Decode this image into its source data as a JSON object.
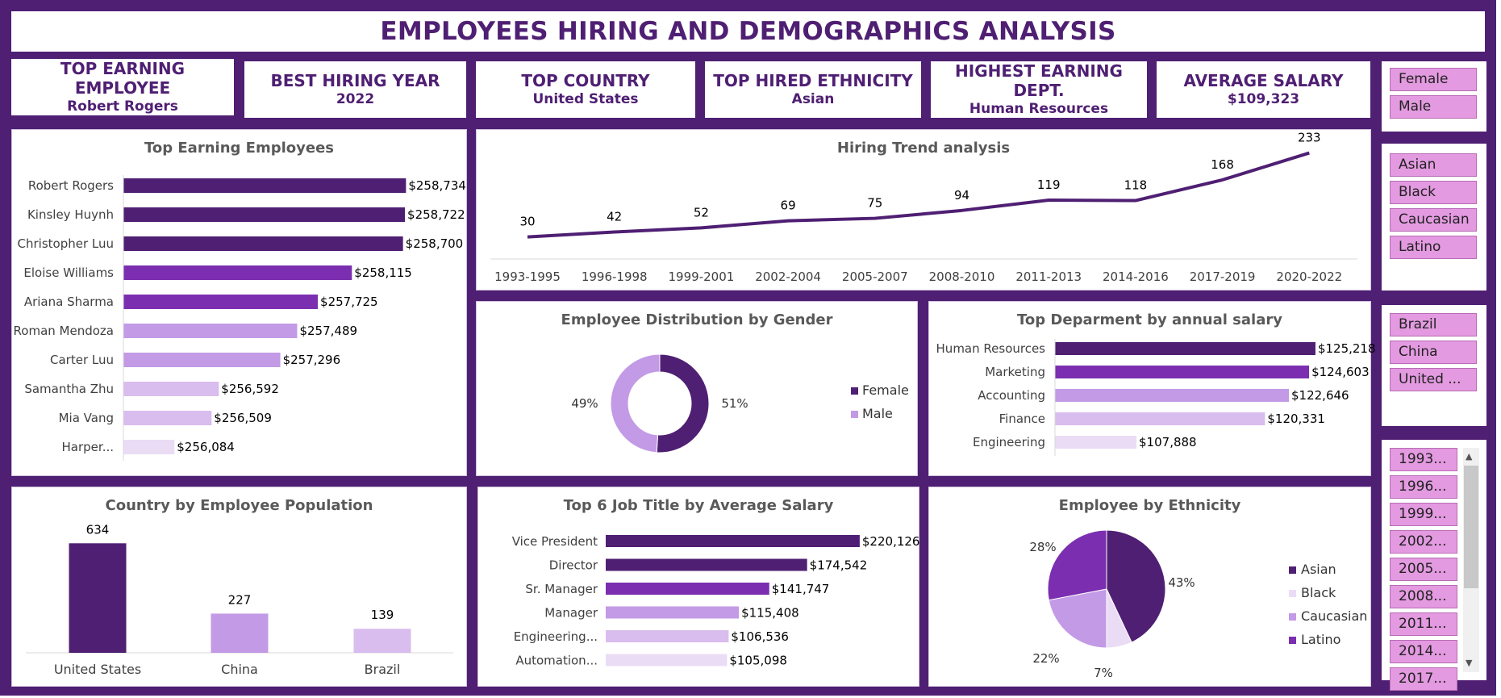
{
  "header": {
    "title": "EMPLOYEES HIRING AND DEMOGRAPHICS ANALYSIS"
  },
  "kpis": [
    {
      "label": "TOP EARNING EMPLOYEE",
      "value": "Robert Rogers"
    },
    {
      "label": "BEST HIRING YEAR",
      "value": "2022"
    },
    {
      "label": "TOP COUNTRY",
      "value": "United States"
    },
    {
      "label": "TOP HIRED ETHNICITY",
      "value": "Asian"
    },
    {
      "label": "HIGHEST EARNING DEPT.",
      "value": "Human Resources"
    },
    {
      "label": "AVERAGE SALARY",
      "value": "$109,323"
    }
  ],
  "slicers": {
    "gender": [
      "Female",
      "Male"
    ],
    "ethnicity": [
      "Asian",
      "Black",
      "Caucasian",
      "Latino"
    ],
    "country": [
      "Brazil",
      "China",
      "United ..."
    ],
    "years": [
      "1993...",
      "1996...",
      "1999...",
      "2002...",
      "2005...",
      "2008...",
      "2011...",
      "2014...",
      "2017..."
    ]
  },
  "colors": {
    "dark": "#4f1f73",
    "mid": "#7b2fb0",
    "light": "#c39ae6",
    "lighter": "#d9bdee",
    "lightest": "#ebdcf5"
  },
  "chart_data": [
    {
      "id": "top_earners",
      "type": "bar",
      "orientation": "horizontal",
      "title": "Top Earning Employees",
      "categories": [
        "Robert Rogers",
        "Kinsley Huynh",
        "Christopher Luu",
        "Eloise Williams",
        "Ariana Sharma",
        "Roman Mendoza",
        "Carter Luu",
        "Samantha Zhu",
        "Mia Vang",
        "Harper..."
      ],
      "values": [
        258734,
        258722,
        258700,
        258115,
        257725,
        257489,
        257296,
        256592,
        256509,
        256084
      ],
      "labels": [
        "$258,734",
        "$258,722",
        "$258,700",
        "$258,115",
        "$257,725",
        "$257,489",
        "$257,296",
        "$256,592",
        "$256,509",
        "$256,084"
      ],
      "xlim": [
        255500,
        258740
      ]
    },
    {
      "id": "hiring_trend",
      "type": "line",
      "title": "Hiring Trend analysis",
      "categories": [
        "1993-1995",
        "1996-1998",
        "1999-2001",
        "2002-2004",
        "2005-2007",
        "2008-2010",
        "2011-2013",
        "2014-2016",
        "2017-2019",
        "2020-2022"
      ],
      "values": [
        30,
        42,
        52,
        69,
        75,
        94,
        119,
        118,
        168,
        233
      ],
      "ylim": [
        0,
        240
      ]
    },
    {
      "id": "gender",
      "type": "pie",
      "variant": "donut",
      "title": "Employee Distribution by Gender",
      "categories": [
        "Female",
        "Male"
      ],
      "values": [
        51,
        49
      ],
      "labels": [
        "51%",
        "49%"
      ]
    },
    {
      "id": "dept_salary",
      "type": "bar",
      "orientation": "horizontal",
      "title": "Top Deparment by annual salary",
      "categories": [
        "Human Resources",
        "Marketing",
        "Accounting",
        "Finance",
        "Engineering"
      ],
      "values": [
        125218,
        124603,
        122646,
        120331,
        107888
      ],
      "labels": [
        "$125,218",
        "$124,603",
        "$122,646",
        "$120,331",
        "$107,888"
      ],
      "xlim": [
        100000,
        125300
      ]
    },
    {
      "id": "country_pop",
      "type": "bar",
      "orientation": "vertical",
      "title": "Country by Employee Population",
      "categories": [
        "United States",
        "China",
        "Brazil"
      ],
      "values": [
        634,
        227,
        139
      ],
      "ylim": [
        0,
        640
      ]
    },
    {
      "id": "job_salary",
      "type": "bar",
      "orientation": "horizontal",
      "title": "Top 6 Job Title by Average Salary",
      "categories": [
        "Vice President",
        "Director",
        "Sr. Manager",
        "Manager",
        "Engineering...",
        "Automation..."
      ],
      "values": [
        220126,
        174542,
        141747,
        115408,
        106536,
        105098
      ],
      "labels": [
        "$220,126",
        "$174,542",
        "$141,747",
        "$115,408",
        "$106,536",
        "$105,098"
      ],
      "xlim": [
        0,
        220200
      ]
    },
    {
      "id": "ethnicity",
      "type": "pie",
      "title": "Employee by Ethnicity",
      "categories": [
        "Asian",
        "Black",
        "Caucasian",
        "Latino"
      ],
      "values": [
        43,
        7,
        22,
        28
      ],
      "labels": [
        "43%",
        "7%",
        "22%",
        "28%"
      ]
    }
  ]
}
